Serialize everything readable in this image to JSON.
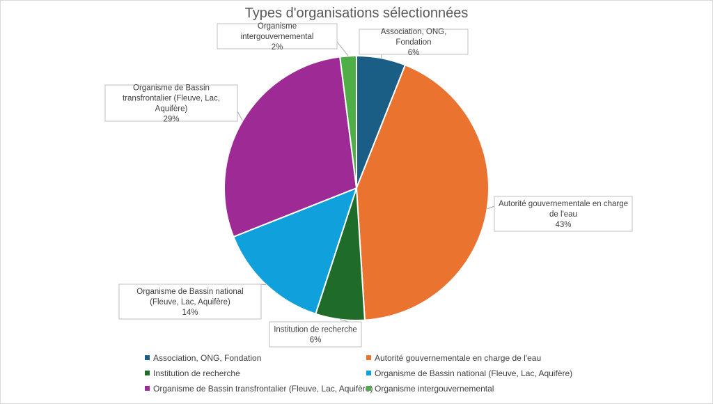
{
  "chart_data": {
    "type": "pie",
    "title": "Types d'organisations sélectionnées",
    "categories": [
      "Association, ONG, Fondation",
      "Autorité gouvernementale en charge de l'eau",
      "Institution de recherche",
      "Organisme de Bassin national (Fleuve, Lac, Aquifère)",
      "Organisme de Bassin transfrontalier (Fleuve, Lac, Aquifère)",
      "Organisme intergouvernemental"
    ],
    "values": [
      6,
      43,
      6,
      14,
      29,
      2
    ],
    "value_labels": [
      "6%",
      "43%",
      "6%",
      "14%",
      "29%",
      "2%"
    ],
    "colors": [
      "#1a5e85",
      "#ea7330",
      "#1e6b2a",
      "#10a1dc",
      "#9e2a96",
      "#4fae45"
    ],
    "legend_position": "bottom"
  }
}
